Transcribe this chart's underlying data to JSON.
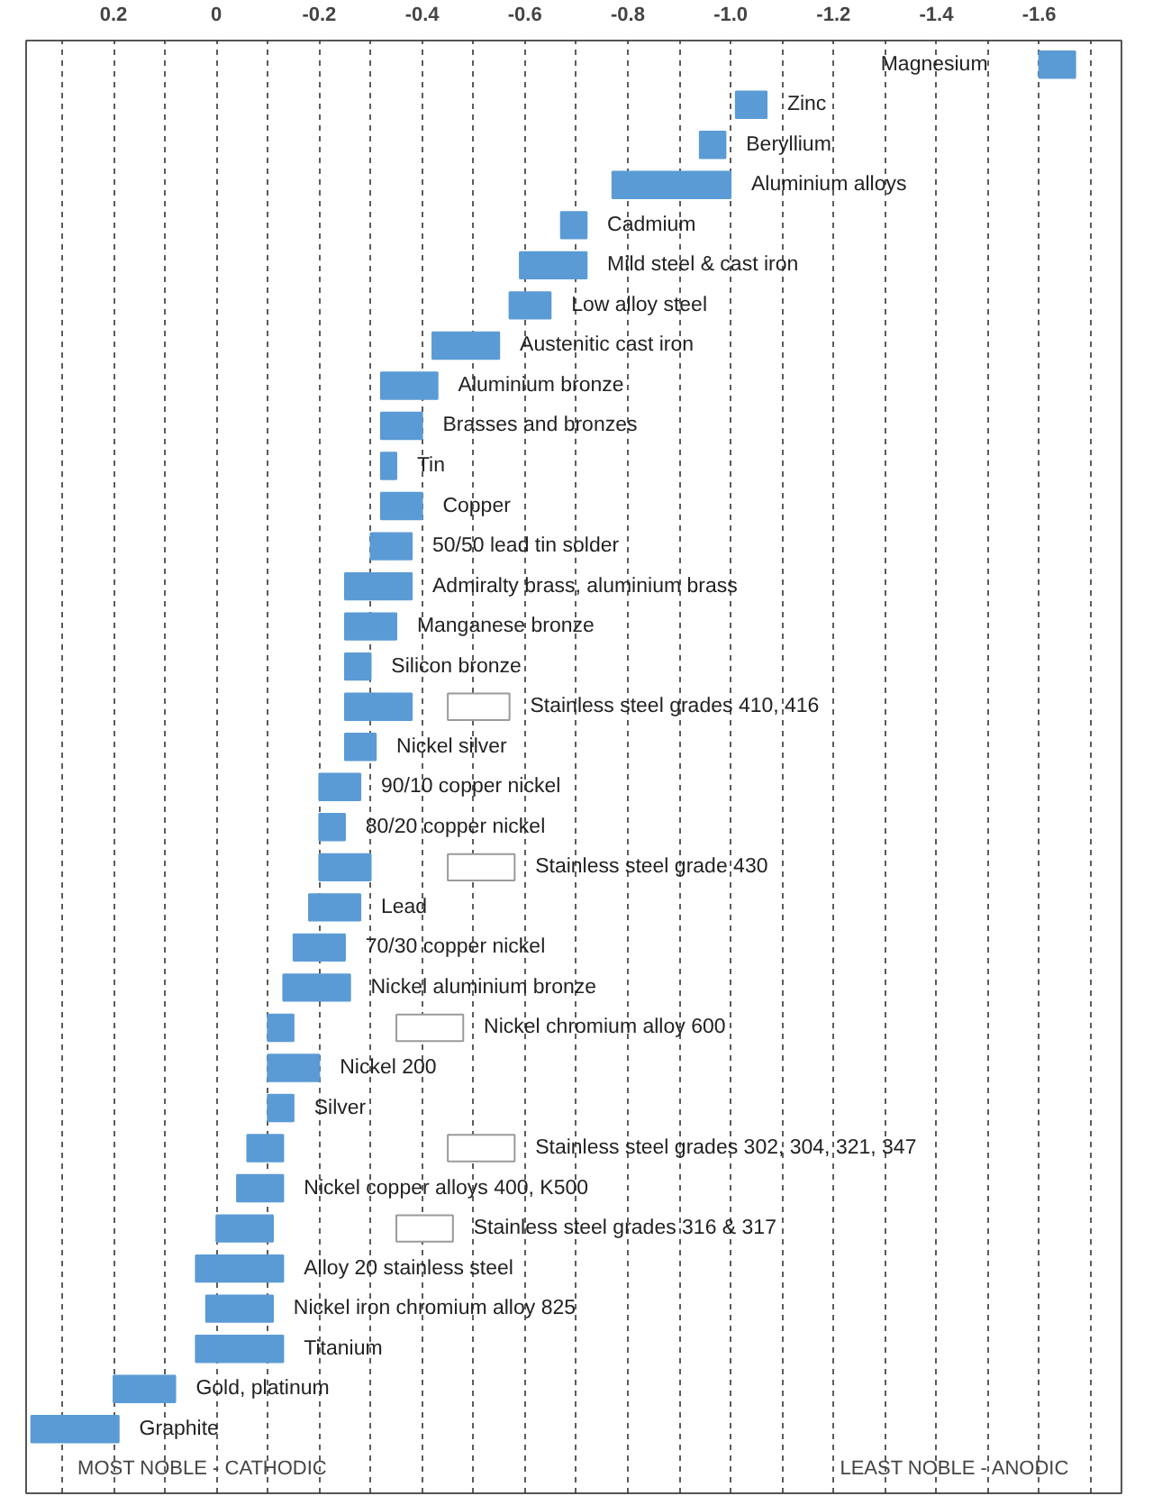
{
  "chart_data": {
    "type": "bar",
    "orientation": "horizontal",
    "tick_labels": "x",
    "grid": "x",
    "categories": [
      "Magnesium",
      "Zinc",
      "Beryllium",
      "Aluminium alloys",
      "Cadmium",
      "Mild steel & cast iron",
      "Low alloy steel",
      "Austenitic cast iron",
      "Aluminium bronze",
      "Brasses and bronzes",
      "Tin",
      "Copper",
      "50/50 lead tin solder",
      "Admiralty brass, aluminium brass",
      "Manganese bronze",
      "Silicon bronze",
      "Stainless steel grades 410, 416",
      "Nickel silver",
      "90/10 copper nickel",
      "80/20 copper nickel",
      "Stainless steel grade 430",
      "Lead",
      "70/30 copper nickel",
      "Nickel aluminium bronze",
      "Nickel chromium alloy 600",
      "Nickel 200",
      "Silver",
      "Stainless steel grades 302, 304, 321, 347",
      "Nickel copper alloys 400, K500",
      "Stainless steel grades 316 & 317",
      "Alloy 20 stainless steel",
      "Nickel iron chromium alloy 825",
      "Titanium",
      "Gold, platinum",
      "Graphite"
    ],
    "series": [
      {
        "color": "#5b9bd5",
        "base": [
          -1.6,
          -1.01,
          -0.94,
          -0.77,
          -0.67,
          -0.59,
          -0.57,
          -0.42,
          -0.32,
          -0.32,
          -0.32,
          -0.32,
          -0.3,
          -0.25,
          -0.25,
          -0.25,
          -0.25,
          -0.25,
          -0.2,
          -0.2,
          -0.2,
          -0.18,
          -0.15,
          -0.13,
          -0.1,
          -0.1,
          -0.1,
          -0.06,
          -0.04,
          0.0,
          0.04,
          0.02,
          0.04,
          0.2,
          0.36
        ],
        "values": [
          -0.07,
          -0.06,
          -0.05,
          -0.23,
          -0.05,
          -0.13,
          -0.08,
          -0.13,
          -0.11,
          -0.08,
          -0.03,
          -0.08,
          -0.08,
          -0.13,
          -0.1,
          -0.05,
          -0.13,
          -0.06,
          -0.08,
          -0.05,
          -0.1,
          -0.1,
          -0.1,
          -0.13,
          -0.05,
          -0.1,
          -0.05,
          -0.07,
          -0.09,
          -0.11,
          -0.17,
          -0.13,
          -0.17,
          -0.12,
          -0.17
        ]
      },
      {
        "color": "#ffffff",
        "base": [
          null,
          null,
          null,
          null,
          null,
          null,
          null,
          null,
          null,
          null,
          null,
          null,
          null,
          null,
          null,
          null,
          -0.45,
          null,
          null,
          null,
          -0.45,
          null,
          null,
          null,
          -0.35,
          null,
          null,
          -0.45,
          null,
          -0.35,
          null,
          null,
          null,
          null,
          null
        ],
        "values": [
          null,
          null,
          null,
          null,
          null,
          null,
          null,
          null,
          null,
          null,
          null,
          null,
          null,
          null,
          null,
          null,
          -0.12,
          null,
          null,
          null,
          -0.13,
          null,
          null,
          null,
          -0.13,
          null,
          null,
          -0.13,
          null,
          -0.11,
          null,
          null,
          null,
          null,
          null
        ]
      }
    ],
    "xlim": [
      0.37,
      -1.76
    ],
    "xticks": [
      {
        "value": 0.3,
        "label": null
      },
      0.2,
      {
        "value": 0.1,
        "label": null
      },
      0,
      {
        "value": -0.1,
        "label": null
      },
      -0.2,
      {
        "value": -0.3,
        "label": null
      },
      -0.4,
      {
        "value": -0.5,
        "label": null
      },
      -0.6,
      {
        "value": -0.7,
        "label": null
      },
      -0.8,
      {
        "value": -0.9,
        "label": null
      },
      {
        "value": -1.0,
        "label": "-1.0"
      },
      {
        "value": -1.1,
        "label": null
      },
      -1.2,
      {
        "value": -1.3,
        "label": null
      },
      -1.4,
      {
        "value": -1.5,
        "label": null
      },
      -1.6,
      {
        "value": -1.7,
        "label": null
      }
    ],
    "annotations": [
      "MOST NOBLE - CATHODIC",
      "LEAST NOBLE - ANODIC"
    ]
  }
}
